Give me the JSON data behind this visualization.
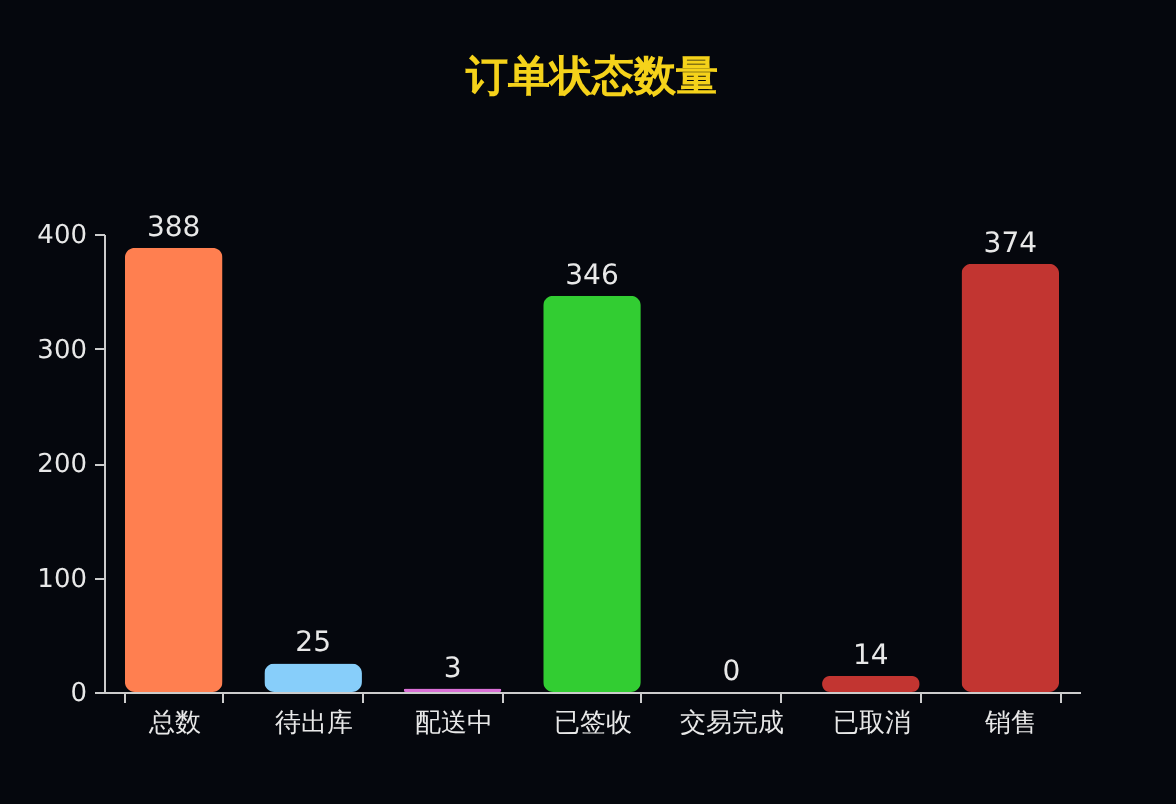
{
  "chart_data": {
    "type": "bar",
    "title": "订单状态数量",
    "categories": [
      "总数",
      "待出库",
      "配送中",
      "已签收",
      "交易完成",
      "已取消",
      "销售"
    ],
    "values": [
      388,
      25,
      3,
      346,
      0,
      14,
      374
    ],
    "colors": [
      "#ff7f50",
      "#87cefa",
      "#da70d6",
      "#32cd32",
      "#6495ed",
      "#c23531",
      "#c23531"
    ],
    "ylim": [
      0,
      400
    ],
    "yticks": [
      0,
      100,
      200,
      300,
      400
    ],
    "grid": false,
    "data_labels": true
  }
}
